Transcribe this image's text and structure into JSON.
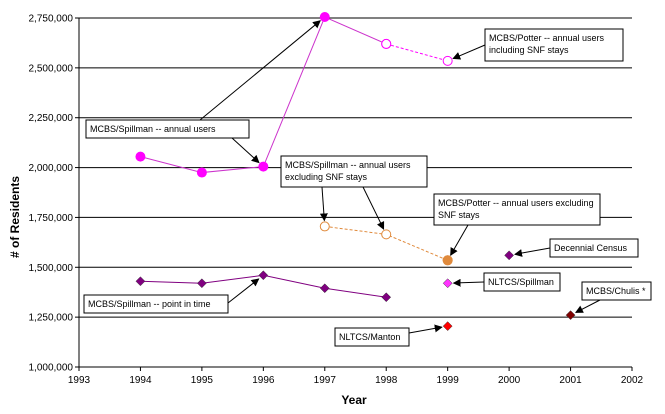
{
  "chart_data": {
    "type": "scatter",
    "title": "",
    "xlabel": "Year",
    "ylabel": "# of Residents",
    "xlim": [
      1993,
      2002
    ],
    "ylim": [
      1000000,
      2750000
    ],
    "x_ticks": [
      "1993",
      "1994",
      "1995",
      "1996",
      "1997",
      "1998",
      "1999",
      "2000",
      "2001",
      "2002"
    ],
    "y_ticks": [
      "1,000,000",
      "1,250,000",
      "1,500,000",
      "1,750,000",
      "2,000,000",
      "2,250,000",
      "2,500,000",
      "2,750,000"
    ],
    "gridlines": "horizontal",
    "series": [
      {
        "name": "MCBS/Spillman -- annual users",
        "marker": "filled-circle",
        "color": "#ff00ff",
        "line_color": "#cc33cc",
        "points": [
          {
            "x": 1994,
            "y": 2055000
          },
          {
            "x": 1995,
            "y": 1975000
          },
          {
            "x": 1996,
            "y": 2005000
          },
          {
            "x": 1997,
            "y": 2755000
          },
          {
            "x": 1998,
            "y": 2620000
          }
        ]
      },
      {
        "name": "MCBS/Potter -- annual users including SNF stays",
        "marker": "open-circle",
        "color": "#ff00ff",
        "line_style": "dashed",
        "points": [
          {
            "x": 1998,
            "y": 2620000
          },
          {
            "x": 1999,
            "y": 2535000
          }
        ]
      },
      {
        "name": "MCBS/Spillman -- annual users excluding SNF stays",
        "marker": "open-circle",
        "color": "#e08a3c",
        "line_style": "dashed",
        "points": [
          {
            "x": 1997,
            "y": 1705000
          },
          {
            "x": 1998,
            "y": 1665000
          },
          {
            "x": 1999,
            "y": 1535000
          }
        ]
      },
      {
        "name": "MCBS/Potter -- annual users excluding SNF stays",
        "marker": "filled-circle",
        "color": "#e08a3c",
        "points": [
          {
            "x": 1999,
            "y": 1535000
          }
        ]
      },
      {
        "name": "MCBS/Spillman -- point in time",
        "marker": "diamond",
        "color": "#800080",
        "line_color": "#800080",
        "points": [
          {
            "x": 1994,
            "y": 1430000
          },
          {
            "x": 1995,
            "y": 1420000
          },
          {
            "x": 1996,
            "y": 1460000
          },
          {
            "x": 1997,
            "y": 1395000
          },
          {
            "x": 1998,
            "y": 1350000
          }
        ]
      },
      {
        "name": "NLTCS/Spillman",
        "marker": "diamond",
        "color": "#ff33ff",
        "points": [
          {
            "x": 1999,
            "y": 1420000
          }
        ]
      },
      {
        "name": "NLTCS/Manton",
        "marker": "diamond",
        "color": "#ff0000",
        "points": [
          {
            "x": 1999,
            "y": 1205000
          }
        ]
      },
      {
        "name": "Decennial Census",
        "marker": "diamond",
        "color": "#800080",
        "points": [
          {
            "x": 2000,
            "y": 1560000
          }
        ]
      },
      {
        "name": "MCBS/Chulis *",
        "marker": "diamond",
        "color": "#800000",
        "points": [
          {
            "x": 2001,
            "y": 1260000
          }
        ]
      }
    ],
    "annotations": [
      {
        "text": [
          "MCBS/Potter -- annual users",
          "including SNF stays"
        ],
        "arrow_to": [
          1999,
          2535000
        ]
      },
      {
        "text": [
          "MCBS/Spillman -- annual users"
        ],
        "arrows_to": [
          [
            1997,
            2755000
          ],
          [
            1996,
            2005000
          ]
        ]
      },
      {
        "text": [
          "MCBS/Spillman -- annual users",
          "excluding SNF stays"
        ],
        "arrows_to": [
          [
            1997,
            1705000
          ],
          [
            1998,
            1665000
          ]
        ]
      },
      {
        "text": [
          "MCBS/Potter -- annual users excluding",
          "SNF stays"
        ],
        "arrow_to": [
          1999,
          1535000
        ]
      },
      {
        "text": [
          "Decennial Census"
        ],
        "arrow_to": [
          2000,
          1560000
        ]
      },
      {
        "text": [
          "NLTCS/Spillman"
        ],
        "arrow_to": [
          1999,
          1420000
        ]
      },
      {
        "text": [
          "MCBS/Chulis *"
        ],
        "arrow_to": [
          2001,
          1260000
        ]
      },
      {
        "text": [
          "MCBS/Spillman -- point in time"
        ],
        "arrow_to": [
          1996,
          1460000
        ]
      },
      {
        "text": [
          "NLTCS/Manton"
        ],
        "arrow_to": [
          1999,
          1205000
        ]
      }
    ]
  }
}
